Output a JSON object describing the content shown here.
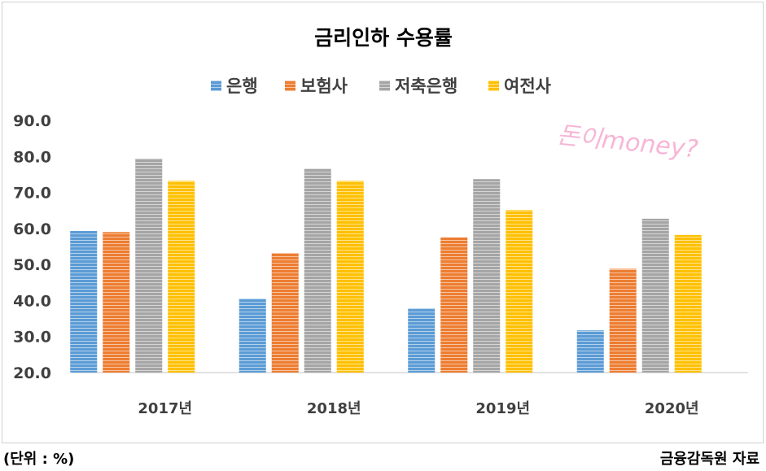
{
  "watermark": "돈이money?",
  "footer": {
    "unit": "(단위 : %)",
    "source": "금융감독원 자료"
  },
  "chart_data": {
    "type": "bar",
    "title": "금리인하 수용률",
    "categories": [
      "2017년",
      "2018년",
      "2019년",
      "2020년"
    ],
    "series": [
      {
        "name": "은행",
        "values": [
          59.3,
          40.5,
          37.8,
          31.7
        ],
        "color": "#5b9bd5"
      },
      {
        "name": "보험사",
        "values": [
          59.0,
          53.2,
          57.5,
          48.8
        ],
        "color": "#ed7d31"
      },
      {
        "name": "저축은행",
        "values": [
          79.4,
          76.6,
          73.7,
          62.7
        ],
        "color": "#a5a5a5"
      },
      {
        "name": "여전사",
        "values": [
          73.2,
          73.2,
          65.1,
          58.2
        ],
        "color": "#ffc000"
      }
    ],
    "yticks": [
      "20.0",
      "30.0",
      "40.0",
      "50.0",
      "60.0",
      "70.0",
      "80.0",
      "90.0"
    ],
    "ylim": [
      20,
      90
    ],
    "legend_position": "top",
    "grid": false
  }
}
